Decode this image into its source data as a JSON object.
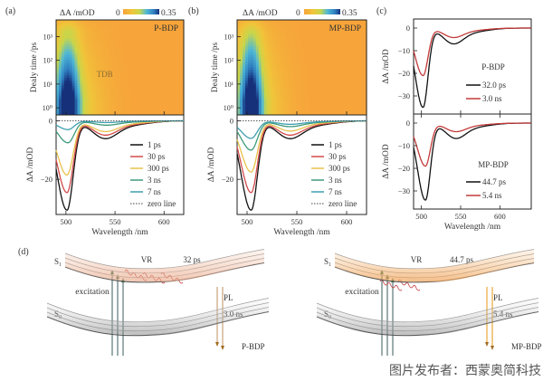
{
  "panel_labels": {
    "a": "(a)",
    "b": "(b)",
    "c": "(c)",
    "d": "(d)"
  },
  "colorbar": {
    "label": "ΔA /mODsub",
    "label_text": "ΔA /mOD",
    "min_label": "0",
    "max_label": "0.35",
    "colors": [
      "#f7a43a",
      "#f0c53a",
      "#c9d64a",
      "#4fb8d6",
      "#2f7fc0",
      "#16307a"
    ]
  },
  "watermark": "图片发布者：西蒙奥简科技",
  "chart_data": [
    {
      "id": "a-heatmap",
      "type": "heatmap",
      "title": "P-BDP",
      "colorbar_label": "ΔA /mOD",
      "colorbar_range": [
        0,
        0.35
      ],
      "xlabel": "Wavelength /nm",
      "ylabel": "Dealy time /ps",
      "xlim": [
        490,
        620
      ],
      "ylim_log10": [
        -0.3,
        3.7
      ],
      "y_tick_labels": [
        "10⁰",
        "10¹",
        "10²",
        "10³"
      ],
      "y_tick_values": [
        1,
        10,
        100,
        1000
      ],
      "hotspot": {
        "center_nm": 502,
        "width_nm": 12,
        "decay_log10_ps": 2.7
      },
      "annotation": "TDB"
    },
    {
      "id": "a-spectra",
      "type": "line",
      "xlabel": "Wavelength /nm",
      "ylabel": "ΔA /mOD",
      "xlim": [
        490,
        620
      ],
      "ylim": [
        -32,
        2
      ],
      "x_tick_labels": [
        "500",
        "550",
        "600"
      ],
      "x_tick_values": [
        500,
        550,
        600
      ],
      "y_tick_labels": [
        "0",
        "-20"
      ],
      "y_tick_values": [
        0,
        -20
      ],
      "legend_position": "right",
      "series": [
        {
          "name": "1 ps",
          "color": "#111111",
          "min": -30.5,
          "peak_nm": 501
        },
        {
          "name": "30 ps",
          "color": "#d24a4a",
          "min": -24.5,
          "peak_nm": 501
        },
        {
          "name": "300 ps",
          "color": "#e8c24c",
          "min": -18.5,
          "peak_nm": 501
        },
        {
          "name": "3 ns",
          "color": "#3f9a7a",
          "min": -7.5,
          "peak_nm": 502
        },
        {
          "name": "7 ns",
          "color": "#3f9fb0",
          "min": -3,
          "peak_nm": 502
        },
        {
          "name": "zero line",
          "color": "#444444",
          "dashed": true,
          "value": 0
        }
      ]
    },
    {
      "id": "b-heatmap",
      "type": "heatmap",
      "title": "MP-BDP",
      "colorbar_label": "ΔA /mOD",
      "colorbar_range": [
        0,
        0.35
      ],
      "xlabel": "Wavelength /nm",
      "ylabel": "Dealy time /ps",
      "xlim": [
        490,
        620
      ],
      "ylim_log10": [
        -0.3,
        3.7
      ],
      "y_tick_labels": [
        "10⁰",
        "10¹",
        "10²",
        "10³"
      ],
      "y_tick_values": [
        1,
        10,
        100,
        1000
      ],
      "hotspot": {
        "center_nm": 504,
        "width_nm": 11,
        "decay_log10_ps": 2.9
      }
    },
    {
      "id": "b-spectra",
      "type": "line",
      "xlabel": "Wavelength /nm",
      "ylabel": "ΔA /mOD",
      "xlim": [
        490,
        620
      ],
      "ylim": [
        -32,
        2
      ],
      "x_tick_labels": [
        "500",
        "550",
        "600"
      ],
      "x_tick_values": [
        500,
        550,
        600
      ],
      "y_tick_labels": [
        "0",
        "-20"
      ],
      "y_tick_values": [
        0,
        -20
      ],
      "legend_position": "right",
      "series": [
        {
          "name": "1 ps",
          "color": "#111111",
          "min": -30.5,
          "peak_nm": 504
        },
        {
          "name": "30 ps",
          "color": "#d24a4a",
          "min": -24.5,
          "peak_nm": 504
        },
        {
          "name": "300 ps",
          "color": "#e8c24c",
          "min": -17.5,
          "peak_nm": 504
        },
        {
          "name": "3 ns",
          "color": "#3f9a7a",
          "min": -10,
          "peak_nm": 504
        },
        {
          "name": "7 ns",
          "color": "#3f9fb0",
          "min": -6,
          "peak_nm": 504
        },
        {
          "name": "zero line",
          "color": "#444444",
          "dashed": true,
          "value": 0
        }
      ]
    },
    {
      "id": "c-top",
      "type": "line",
      "title": "P-BDP",
      "ylabel": "ΔA /mOD",
      "xlim": [
        490,
        640
      ],
      "ylim": [
        -38,
        4
      ],
      "y_tick_labels": [
        "0",
        "-10",
        "-20",
        "-30"
      ],
      "y_tick_values": [
        0,
        -10,
        -20,
        -30
      ],
      "legend_position": "bottom-right",
      "series": [
        {
          "name": "32.0 ps",
          "color": "#111111",
          "min": -35,
          "peak_nm": 502
        },
        {
          "name": "3.0 ns",
          "color": "#c23a3a",
          "min": -21,
          "peak_nm": 502
        }
      ]
    },
    {
      "id": "c-bottom",
      "type": "line",
      "title": "MP-BDP",
      "xlabel": "Wavelength /nm",
      "ylabel": "ΔA /mOD",
      "xlim": [
        490,
        640
      ],
      "ylim": [
        -38,
        4
      ],
      "x_tick_labels": [
        "500",
        "550",
        "600"
      ],
      "x_tick_values": [
        500,
        550,
        600
      ],
      "y_tick_labels": [
        "0",
        "-10",
        "-20",
        "-30"
      ],
      "y_tick_values": [
        0,
        -10,
        -20,
        -30
      ],
      "legend_position": "bottom-right",
      "series": [
        {
          "name": "44.7 ps",
          "color": "#111111",
          "min": -34,
          "peak_nm": 505
        },
        {
          "name": "5.4 ns",
          "color": "#c23a3a",
          "min": -19,
          "peak_nm": 505
        }
      ]
    }
  ],
  "diagram": {
    "left": {
      "s1": "S₁",
      "s0": "S₀",
      "vr": "VR",
      "vr_time": "32 ps",
      "excitation": "excitation",
      "pl": "PL",
      "pl_time": "3.0 ns",
      "molecule": "P-BDP",
      "vr_waves": 3
    },
    "right": {
      "s1": "S₁",
      "s0": "S₀",
      "vr": "VR",
      "vr_time": "44.7 ps",
      "excitation": "excitation",
      "pl": "PL",
      "pl_time": "5.4 ns",
      "molecule": "MP-BDP",
      "vr_waves": 2
    }
  }
}
